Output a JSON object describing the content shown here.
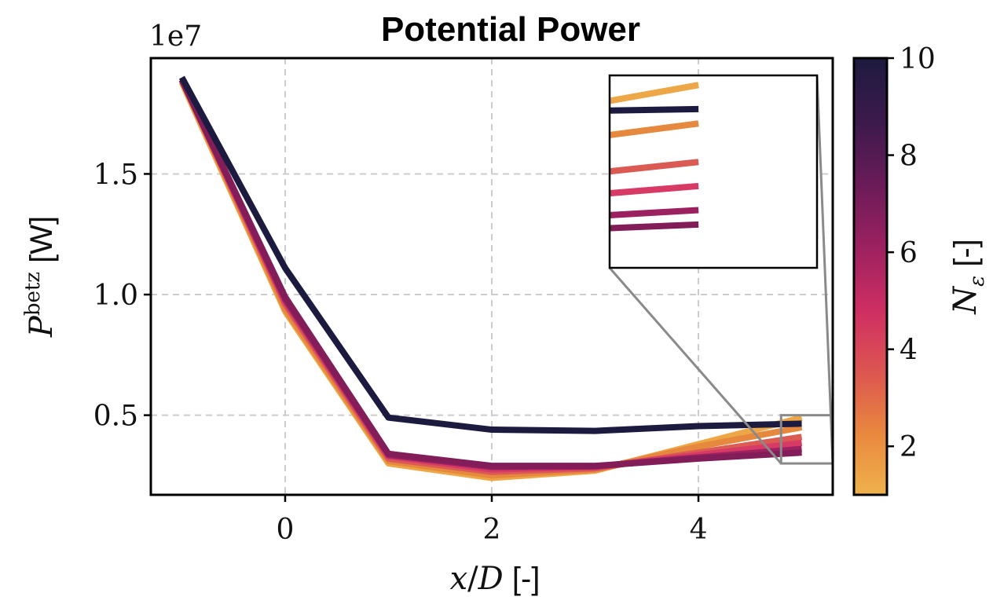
{
  "chart_data": {
    "type": "line",
    "title": "Potential Power",
    "xlabel": "x/D [-]",
    "ylabel": "P^betz [W]",
    "offset_label": "1e7",
    "x": [
      -1,
      0,
      1,
      2,
      3,
      4,
      5
    ],
    "xlim": [
      -1.3,
      5.3
    ],
    "ylim": [
      0.17,
      1.98
    ],
    "xticks": [
      0,
      2,
      4
    ],
    "xtick_labels": [
      "0",
      "2",
      "4"
    ],
    "yticks": [
      0.5,
      1.0,
      1.5
    ],
    "ytick_labels": [
      "0.5",
      "1.0",
      "1.5"
    ],
    "grid": true,
    "series": [
      {
        "n_eps": 1,
        "color": "#eea747",
        "values": [
          1.88,
          0.93,
          0.3,
          0.24,
          0.27,
          0.38,
          0.49
        ]
      },
      {
        "n_eps": 2,
        "color": "#e6893e",
        "values": [
          1.89,
          0.94,
          0.31,
          0.25,
          0.275,
          0.37,
          0.45
        ]
      },
      {
        "n_eps": 3,
        "color": "#db5a54",
        "values": [
          1.89,
          0.96,
          0.32,
          0.265,
          0.28,
          0.345,
          0.41
        ]
      },
      {
        "n_eps": 4,
        "color": "#d63a65",
        "values": [
          1.89,
          0.97,
          0.33,
          0.275,
          0.285,
          0.335,
          0.385
        ]
      },
      {
        "n_eps": 5,
        "color": "#9b2160",
        "values": [
          1.89,
          0.98,
          0.335,
          0.285,
          0.288,
          0.325,
          0.36
        ]
      },
      {
        "n_eps": 6,
        "color": "#821d59",
        "values": [
          1.89,
          0.99,
          0.34,
          0.29,
          0.29,
          0.32,
          0.345
        ]
      },
      {
        "n_eps": 10,
        "color": "#1d1a3f",
        "values": [
          1.9,
          1.11,
          0.49,
          0.44,
          0.435,
          0.455,
          0.465
        ]
      }
    ],
    "inset": {
      "source_xlim": [
        4.8,
        5.3
      ],
      "source_ylim": [
        0.3,
        0.5
      ],
      "zoom_xlim": [
        4.85,
        5.2
      ],
      "zoom_ylim": [
        0.3,
        0.5
      ]
    },
    "colorbar": {
      "label": "N_ε [-]",
      "range": [
        1,
        10
      ],
      "ticks": [
        2,
        4,
        6,
        8,
        10
      ],
      "tick_labels": [
        "2",
        "4",
        "6",
        "8",
        "10"
      ],
      "colormap": [
        "#efb24c",
        "#e9883f",
        "#dc5650",
        "#cf2f62",
        "#9b2160",
        "#6a1b58",
        "#3d1a4c",
        "#1d1a3f"
      ]
    }
  }
}
